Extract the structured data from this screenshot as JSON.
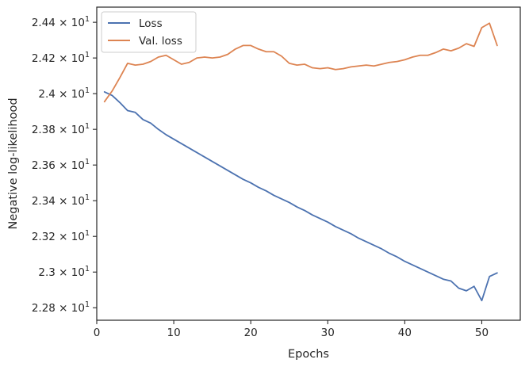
{
  "chart_data": {
    "type": "line",
    "title": "",
    "xlabel": "Epochs",
    "ylabel": "Negative log-likelihood",
    "xlim": [
      0,
      55
    ],
    "ylim": [
      22.73,
      24.485
    ],
    "x_ticks": [
      0,
      10,
      20,
      30,
      40,
      50
    ],
    "x_tick_labels": [
      "0",
      "10",
      "20",
      "30",
      "40",
      "50"
    ],
    "y_ticks": [
      22.8,
      23.0,
      23.2,
      23.4,
      23.6,
      23.8,
      24.0,
      24.2,
      24.4
    ],
    "y_tick_labels": [
      {
        "mantissa": "2.28",
        "times": "×",
        "base": "10",
        "exp": "1"
      },
      {
        "mantissa": "2.3",
        "times": "×",
        "base": "10",
        "exp": "1"
      },
      {
        "mantissa": "2.32",
        "times": "×",
        "base": "10",
        "exp": "1"
      },
      {
        "mantissa": "2.34",
        "times": "×",
        "base": "10",
        "exp": "1"
      },
      {
        "mantissa": "2.36",
        "times": "×",
        "base": "10",
        "exp": "1"
      },
      {
        "mantissa": "2.38",
        "times": "×",
        "base": "10",
        "exp": "1"
      },
      {
        "mantissa": "2.4",
        "times": "×",
        "base": "10",
        "exp": "1"
      },
      {
        "mantissa": "2.42",
        "times": "×",
        "base": "10",
        "exp": "1"
      },
      {
        "mantissa": "2.44",
        "times": "×",
        "base": "10",
        "exp": "1"
      }
    ],
    "grid": false,
    "legend_position": "top-left",
    "x": [
      1,
      2,
      3,
      4,
      5,
      6,
      7,
      8,
      9,
      10,
      11,
      12,
      13,
      14,
      15,
      16,
      17,
      18,
      19,
      20,
      21,
      22,
      23,
      24,
      25,
      26,
      27,
      28,
      29,
      30,
      31,
      32,
      33,
      34,
      35,
      36,
      37,
      38,
      39,
      40,
      41,
      42,
      43,
      44,
      45,
      46,
      47,
      48,
      49,
      50,
      51,
      52
    ],
    "series": [
      {
        "name": "Loss",
        "color": "#4c72b0",
        "values": [
          24.01,
          23.99,
          23.95,
          23.905,
          23.895,
          23.855,
          23.835,
          23.8,
          23.77,
          23.745,
          23.72,
          23.695,
          23.67,
          23.645,
          23.62,
          23.595,
          23.57,
          23.545,
          23.52,
          23.5,
          23.475,
          23.455,
          23.43,
          23.41,
          23.39,
          23.365,
          23.345,
          23.32,
          23.3,
          23.28,
          23.255,
          23.235,
          23.215,
          23.19,
          23.17,
          23.15,
          23.13,
          23.105,
          23.085,
          23.06,
          23.04,
          23.02,
          23.0,
          22.98,
          22.96,
          22.95,
          22.91,
          22.895,
          22.92,
          22.84,
          22.975,
          22.995
        ]
      },
      {
        "name": "Val. loss",
        "color": "#dd8452",
        "values": [
          23.955,
          24.015,
          24.09,
          24.17,
          24.16,
          24.165,
          24.18,
          24.205,
          24.215,
          24.19,
          24.165,
          24.175,
          24.2,
          24.205,
          24.2,
          24.205,
          24.22,
          24.25,
          24.27,
          24.27,
          24.25,
          24.235,
          24.235,
          24.21,
          24.17,
          24.16,
          24.165,
          24.145,
          24.14,
          24.145,
          24.135,
          24.14,
          24.15,
          24.155,
          24.16,
          24.155,
          24.165,
          24.175,
          24.18,
          24.19,
          24.205,
          24.215,
          24.215,
          24.23,
          24.25,
          24.24,
          24.255,
          24.28,
          24.265,
          24.37,
          24.395,
          24.27
        ]
      }
    ]
  }
}
